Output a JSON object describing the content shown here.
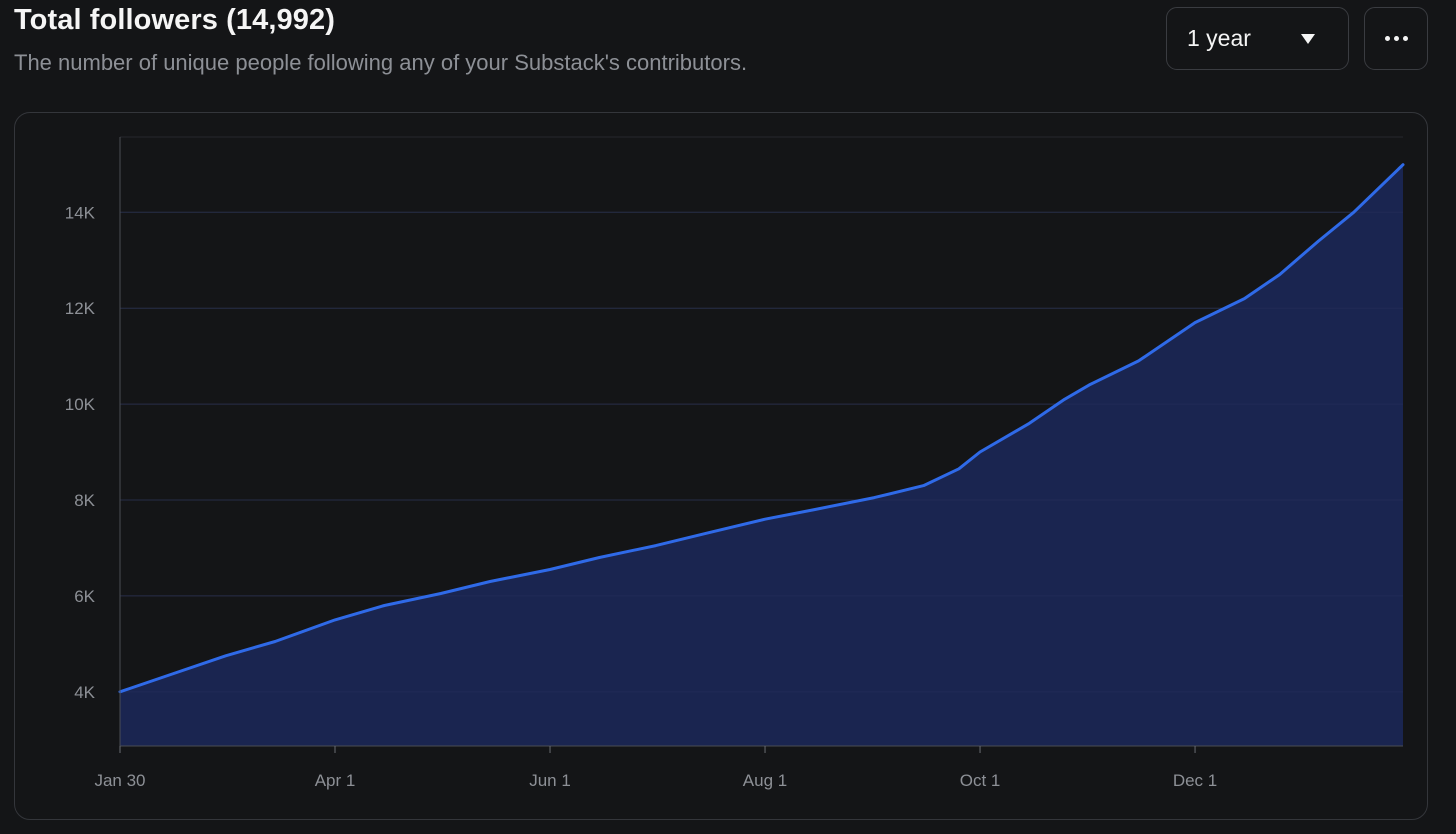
{
  "header": {
    "title": "Total followers (14,992)",
    "subtitle": "The number of unique people following any of your Substack's contributors."
  },
  "controls": {
    "period_selected": "1 year",
    "more_icon": "ellipsis-horizontal-icon",
    "caret_icon": "caret-down-icon"
  },
  "colors": {
    "line": "#2f6ae8",
    "area": "#1a2550",
    "background": "#141517",
    "grid": "#26282c",
    "tick_text": "#8d9096"
  },
  "chart_data": {
    "type": "area",
    "title": "Total followers (14,992)",
    "xlabel": "",
    "ylabel": "",
    "x_tick_labels": [
      "Jan 30",
      "Apr 1",
      "Jun 1",
      "Aug 1",
      "Oct 1",
      "Dec 1"
    ],
    "x_tick_dates": [
      "2023-01-30",
      "2023-04-01",
      "2023-06-01",
      "2023-08-01",
      "2023-10-01",
      "2023-12-01"
    ],
    "y_tick_labels": [
      "4K",
      "6K",
      "8K",
      "10K",
      "12K",
      "14K"
    ],
    "y_ticks": [
      4000,
      6000,
      8000,
      10000,
      12000,
      14000
    ],
    "xlim": [
      "2023-01-30",
      "2024-01-29"
    ],
    "ylim": [
      2870,
      15570
    ],
    "grid": true,
    "legend": "none",
    "series": [
      {
        "x": [
          "2023-01-30",
          "2023-02-13",
          "2023-03-01",
          "2023-03-15",
          "2023-04-01",
          "2023-04-15",
          "2023-05-01",
          "2023-05-15",
          "2023-06-01",
          "2023-06-15",
          "2023-07-01",
          "2023-07-15",
          "2023-08-01",
          "2023-08-15",
          "2023-09-01",
          "2023-09-15",
          "2023-09-25",
          "2023-10-01",
          "2023-10-15",
          "2023-10-25",
          "2023-11-01",
          "2023-11-15",
          "2023-12-01",
          "2023-12-15",
          "2023-12-25",
          "2024-01-05",
          "2024-01-15",
          "2024-01-29"
        ],
        "values": [
          4000,
          4350,
          4750,
          5050,
          5500,
          5800,
          6050,
          6300,
          6550,
          6800,
          7050,
          7300,
          7600,
          7800,
          8050,
          8300,
          8650,
          9000,
          9600,
          10100,
          10400,
          10900,
          11700,
          12200,
          12700,
          13400,
          14000,
          14992
        ]
      }
    ]
  }
}
